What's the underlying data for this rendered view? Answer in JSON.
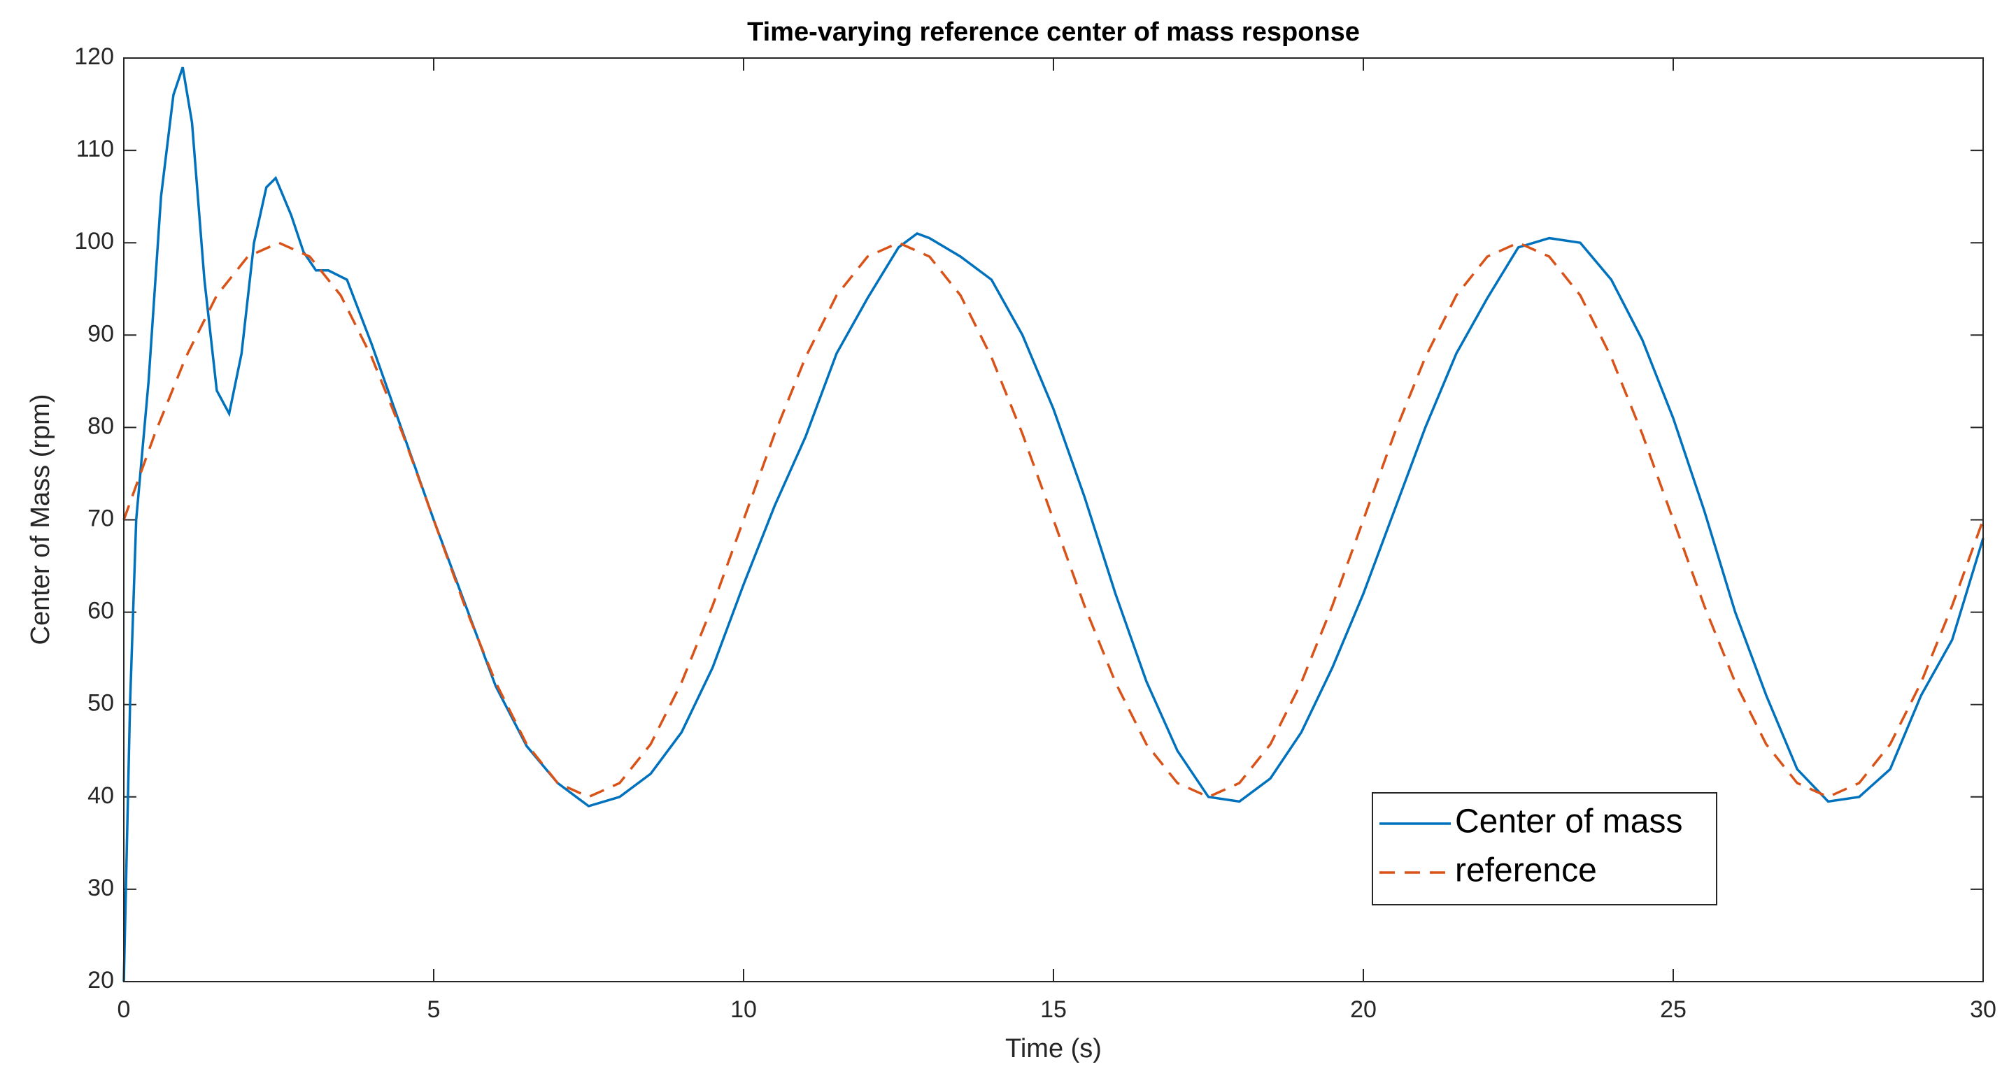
{
  "chart_data": {
    "type": "line",
    "title": "Time-varying reference center of mass response",
    "xlabel": "Time (s)",
    "ylabel": "Center of Mass (rpm)",
    "xlim": [
      0,
      30
    ],
    "xticks": [
      0,
      5,
      10,
      15,
      20,
      25,
      30
    ],
    "ylim": [
      20,
      120
    ],
    "yticks": [
      20,
      30,
      40,
      50,
      60,
      70,
      80,
      90,
      100,
      110,
      120
    ],
    "grid": false,
    "series": [
      {
        "name": "Center of mass",
        "color": "#0072bd",
        "dash": "solid",
        "x": [
          0,
          0.1,
          0.2,
          0.4,
          0.6,
          0.8,
          0.95,
          1.1,
          1.3,
          1.5,
          1.7,
          1.9,
          2.1,
          2.3,
          2.45,
          2.7,
          2.9,
          3.1,
          3.3,
          3.6,
          4,
          4.5,
          5,
          5.5,
          6,
          6.5,
          7,
          7.5,
          8,
          8.5,
          9,
          9.5,
          10,
          10.5,
          11,
          11.5,
          12,
          12.5,
          12.8,
          13,
          13.5,
          14,
          14.5,
          15,
          15.5,
          16,
          16.5,
          17,
          17.5,
          18,
          18.5,
          19,
          19.5,
          20,
          20.5,
          21,
          21.5,
          22,
          22.5,
          23,
          23.5,
          24,
          24.5,
          25,
          25.5,
          26,
          26.5,
          27,
          27.5,
          28,
          28.5,
          29,
          29.5,
          30
        ],
        "values": [
          20,
          50,
          70,
          85,
          105,
          116,
          119,
          113,
          96,
          84,
          81.5,
          88,
          100,
          106,
          107,
          103,
          99,
          97,
          97,
          96,
          89,
          79.5,
          70,
          61,
          52,
          45.5,
          41.5,
          39,
          40,
          42.5,
          47,
          54,
          63,
          71.5,
          79,
          88,
          94,
          99.5,
          101,
          100.5,
          98.5,
          96,
          90,
          82,
          72.5,
          62,
          52.5,
          45,
          40,
          39.5,
          42,
          47,
          54,
          62,
          71,
          80,
          88,
          94,
          99.5,
          100.5,
          100,
          96,
          89.5,
          81,
          71,
          60,
          51,
          43,
          39.5,
          40,
          43,
          51,
          57,
          68
        ]
      },
      {
        "name": "reference",
        "color": "#d95319",
        "dash": "dashed",
        "x": [
          0,
          0.5,
          1,
          1.5,
          2,
          2.5,
          3,
          3.5,
          4,
          4.5,
          5,
          5.5,
          6,
          6.5,
          7,
          7.5,
          8,
          8.5,
          9,
          9.5,
          10,
          10.5,
          11,
          11.5,
          12,
          12.5,
          13,
          13.5,
          14,
          14.5,
          15,
          15.5,
          16,
          16.5,
          17,
          17.5,
          18,
          18.5,
          19,
          19.5,
          20,
          20.5,
          21,
          21.5,
          22,
          22.5,
          23,
          23.5,
          24,
          24.5,
          25,
          25.5,
          26,
          26.5,
          27,
          27.5,
          28,
          28.5,
          29,
          29.5,
          30
        ],
        "values": [
          70,
          79.3,
          87.6,
          94.3,
          98.5,
          100,
          98.5,
          94.3,
          87.6,
          79.3,
          70,
          60.7,
          52.4,
          45.7,
          41.5,
          40,
          41.5,
          45.7,
          52.4,
          60.7,
          70,
          79.3,
          87.6,
          94.3,
          98.5,
          100,
          98.5,
          94.3,
          87.6,
          79.3,
          70,
          60.7,
          52.4,
          45.7,
          41.5,
          40,
          41.5,
          45.7,
          52.4,
          60.7,
          70,
          79.3,
          87.6,
          94.3,
          98.5,
          100,
          98.5,
          94.3,
          87.6,
          79.3,
          70,
          60.7,
          52.4,
          45.7,
          41.5,
          40,
          41.5,
          45.7,
          52.4,
          60.7,
          70
        ]
      }
    ]
  }
}
